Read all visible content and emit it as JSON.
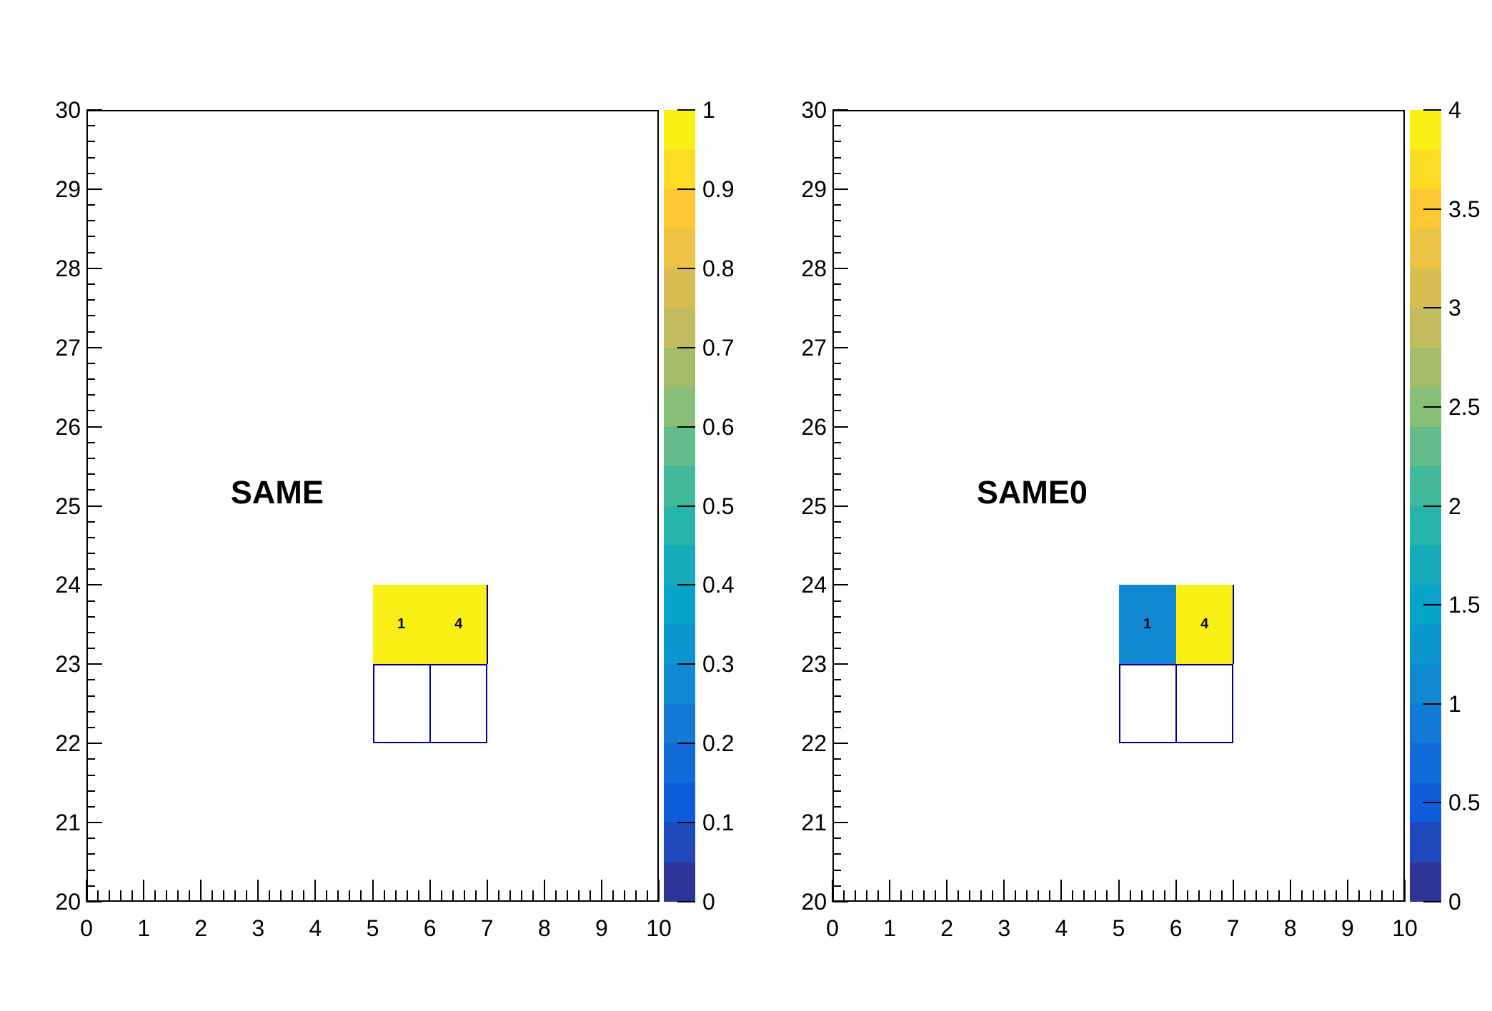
{
  "styles": {
    "background": "#ffffff",
    "frame_color": "#000000",
    "text_color": "#000000",
    "box_line_color": "#000099",
    "cell_value_color": "#000000"
  },
  "palette_colors": [
    "#2e3498",
    "#1e48bb",
    "#0f5cdd",
    "#116ada",
    "#1379d7",
    "#1188d3",
    "#0b96cf",
    "#06a4ca",
    "#16abbb",
    "#26b3ab",
    "#40b99b",
    "#63bc89",
    "#87bf77",
    "#a5bd6b",
    "#c2bc5f",
    "#dabd51",
    "#ecc342",
    "#fec832",
    "#fcdc24",
    "#faf015"
  ],
  "chart_data": [
    {
      "type": "heatmap",
      "title": "SAME",
      "x_axis": {
        "range": [
          0,
          10
        ],
        "tick_labels": [
          "0",
          "1",
          "2",
          "3",
          "4",
          "5",
          "6",
          "7",
          "8",
          "9",
          "10"
        ],
        "minor_divisions": 5
      },
      "y_axis": {
        "range": [
          20,
          30
        ],
        "tick_labels": [
          "20",
          "21",
          "22",
          "23",
          "24",
          "25",
          "26",
          "27",
          "28",
          "29",
          "30"
        ],
        "minor_divisions": 5
      },
      "z_axis": {
        "range": [
          0,
          1
        ],
        "levels": 20,
        "position": "right",
        "tick_labels": [
          "0",
          "0.1",
          "0.2",
          "0.3",
          "0.4",
          "0.5",
          "0.6",
          "0.7",
          "0.8",
          "0.9",
          "1"
        ]
      },
      "cells": [
        {
          "x_bin": [
            5,
            6
          ],
          "y_bin": [
            23,
            24
          ],
          "value": 1,
          "label": "1"
        },
        {
          "x_bin": [
            6,
            7
          ],
          "y_bin": [
            23,
            24
          ],
          "value": 4,
          "label": "4"
        }
      ],
      "outline_cells": [
        {
          "x_bin": [
            5,
            6
          ],
          "y_bin": [
            22,
            23
          ]
        },
        {
          "x_bin": [
            6,
            7
          ],
          "y_bin": [
            22,
            23
          ]
        }
      ],
      "grid": false,
      "legend_position": "right-colorbar"
    },
    {
      "type": "heatmap",
      "title": "SAME0",
      "x_axis": {
        "range": [
          0,
          10
        ],
        "tick_labels": [
          "0",
          "1",
          "2",
          "3",
          "4",
          "5",
          "6",
          "7",
          "8",
          "9",
          "10"
        ],
        "minor_divisions": 5
      },
      "y_axis": {
        "range": [
          20,
          30
        ],
        "tick_labels": [
          "20",
          "21",
          "22",
          "23",
          "24",
          "25",
          "26",
          "27",
          "28",
          "29",
          "30"
        ],
        "minor_divisions": 5
      },
      "z_axis": {
        "range": [
          0,
          4
        ],
        "levels": 20,
        "position": "right",
        "tick_labels": [
          "0",
          "0.5",
          "1",
          "1.5",
          "2",
          "2.5",
          "3",
          "3.5",
          "4"
        ]
      },
      "cells": [
        {
          "x_bin": [
            5,
            6
          ],
          "y_bin": [
            23,
            24
          ],
          "value": 1,
          "label": "1"
        },
        {
          "x_bin": [
            6,
            7
          ],
          "y_bin": [
            23,
            24
          ],
          "value": 4,
          "label": "4"
        }
      ],
      "outline_cells": [
        {
          "x_bin": [
            5,
            6
          ],
          "y_bin": [
            22,
            23
          ]
        },
        {
          "x_bin": [
            6,
            7
          ],
          "y_bin": [
            22,
            23
          ]
        }
      ],
      "grid": false,
      "legend_position": "right-colorbar"
    }
  ]
}
